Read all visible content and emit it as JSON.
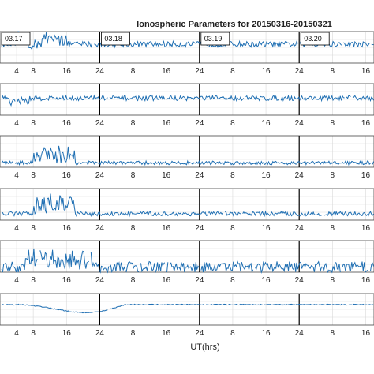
{
  "chart_data": {
    "type": "line",
    "title": "Ionospheric Parameters for 20150316-20150321",
    "xlabel": "UT(hrs)",
    "ylabel": "",
    "x_tick_labels": [
      "4",
      "8",
      "16",
      "24",
      "8",
      "16",
      "24",
      "8",
      "16",
      "24",
      "8",
      "16"
    ],
    "x_tick_values": [
      4,
      8,
      16,
      24,
      32,
      40,
      48,
      56,
      64,
      72,
      80,
      88
    ],
    "xlim": [
      0,
      90
    ],
    "day_labels": [
      {
        "text": "03.17",
        "x": 0
      },
      {
        "text": "03.18",
        "x": 24
      },
      {
        "text": "03.19",
        "x": 48
      },
      {
        "text": "03.20",
        "x": 72
      }
    ],
    "day_boundaries": [
      24,
      48,
      72
    ],
    "grid": true,
    "line_color": "#1f6fb3",
    "panels": [
      {
        "name": "",
        "ylim": [
          0,
          10
        ],
        "base": 6.0,
        "noise": 0.9,
        "spike_range": [
          4,
          16
        ],
        "spike_amp": 3.5,
        "dip_range": [
          5,
          10
        ],
        "dip_amp": -3.0
      },
      {
        "name": "",
        "ylim": [
          0,
          10
        ],
        "base": 5.4,
        "noise": 0.8,
        "spike_range": [
          2,
          7
        ],
        "spike_amp": -2.2,
        "dip_range": [
          0,
          0
        ],
        "dip_amp": 0
      },
      {
        "name": "",
        "ylim": [
          0,
          10
        ],
        "base": 1.4,
        "noise": 0.6,
        "spike_range": [
          8,
          18
        ],
        "spike_amp": 5.5,
        "dip_range": [
          0,
          0
        ],
        "dip_amp": 0
      },
      {
        "name": "",
        "ylim": [
          0,
          10
        ],
        "base": 2.0,
        "noise": 0.7,
        "spike_range": [
          8,
          18
        ],
        "spike_amp": 5.8,
        "dip_range": [
          0,
          0
        ],
        "dip_amp": 0
      },
      {
        "name": "",
        "ylim": [
          0,
          10
        ],
        "base": 1.6,
        "noise": 1.8,
        "spike_range": [
          6,
          22
        ],
        "spike_amp": 4.5,
        "dip_range": [
          0,
          0
        ],
        "dip_amp": 0
      },
      {
        "name": "",
        "ylim": [
          0,
          10
        ],
        "base": 6.5,
        "noise": 0.15,
        "spike_range": [
          0,
          0
        ],
        "spike_amp": 0,
        "dip_range": [
          4,
          30
        ],
        "dip_amp": -3.5
      }
    ]
  }
}
